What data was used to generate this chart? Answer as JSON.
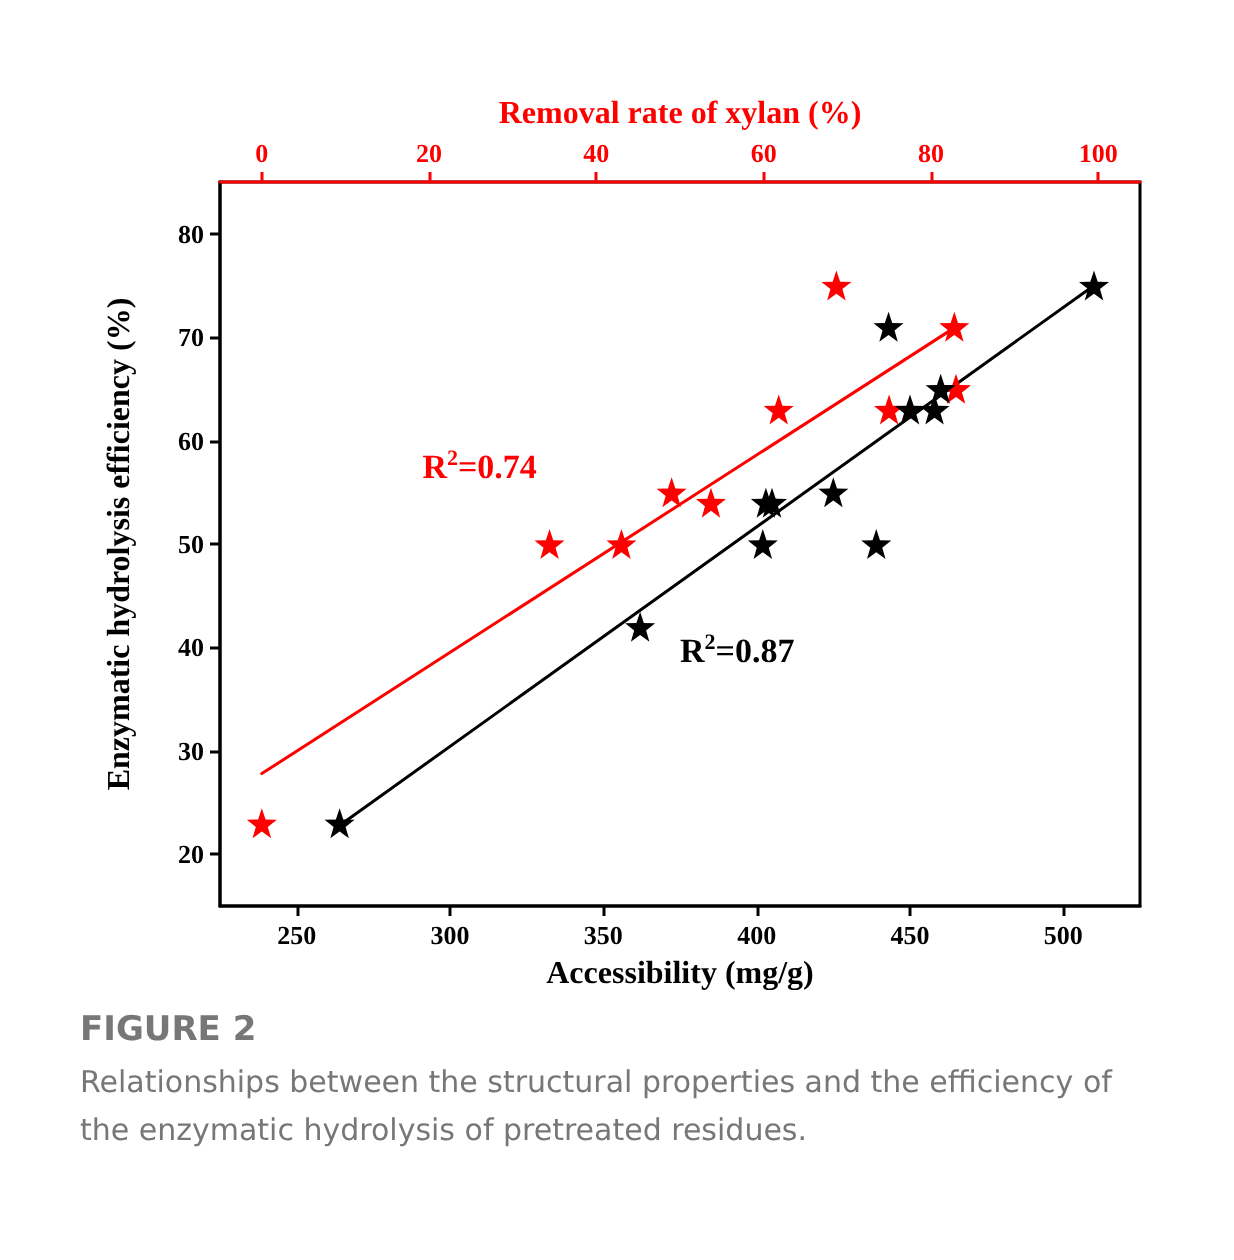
{
  "chart_data": {
    "type": "scatter",
    "xlabel": "Accessibility (mg/g)",
    "x2label": "Removal rate of xylan (%)",
    "ylabel": "Enzymatic hydrolysis efficiency (%)",
    "xlim": [
      225,
      525
    ],
    "xticks": [
      250,
      300,
      350,
      400,
      450,
      500
    ],
    "x2lim": [
      -5,
      105
    ],
    "x2ticks": [
      0,
      20,
      40,
      60,
      80,
      100
    ],
    "ylim": [
      15,
      85
    ],
    "yticks": [
      20,
      30,
      40,
      50,
      60,
      70,
      80
    ],
    "marker": "star",
    "series": [
      {
        "axis": "x2",
        "color": "#ff0000",
        "x": [
          0,
          34.4,
          43,
          49,
          53.7,
          61.8,
          68.7,
          75,
          82.8,
          83
        ],
        "values": [
          23,
          50,
          50,
          55,
          54,
          63,
          75,
          63,
          71,
          65
        ]
      },
      {
        "color": "#000000",
        "x": [
          264,
          362,
          402,
          403,
          405,
          425,
          439,
          443,
          450,
          458,
          460,
          510
        ],
        "values": [
          23,
          42,
          50,
          54,
          54,
          55,
          50,
          71,
          63,
          63,
          65,
          75
        ]
      },
      {
        "type": "line",
        "axis": "x2",
        "color": "#ff0000",
        "marker": "none",
        "x": [
          0,
          82.6
        ],
        "values": [
          27.8,
          70.8
        ]
      },
      {
        "type": "line",
        "color": "#000000",
        "marker": "none",
        "x": [
          265,
          510
        ],
        "values": [
          23,
          75
        ]
      }
    ],
    "annotations": [
      "R$^{2}$=0.74",
      "R$^{2}$=0.87",
      "FIGURE 2",
      "Relationships between the structural properties and the efficiency of the enzymatic hydrolysis of pretreated residues."
    ]
  }
}
